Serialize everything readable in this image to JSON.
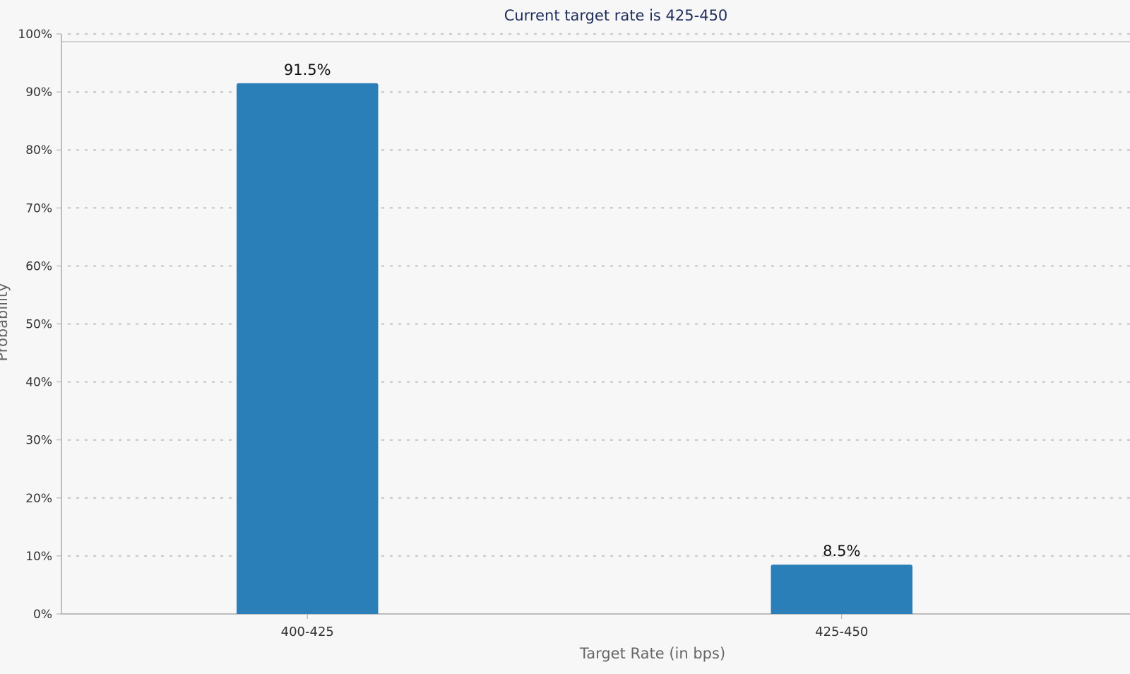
{
  "chart_data": {
    "type": "bar",
    "title": "Current target rate is 425-450",
    "xlabel": "Target Rate (in bps)",
    "ylabel": "Probability",
    "categories": [
      "400-425",
      "425-450"
    ],
    "values": [
      91.5,
      8.5
    ],
    "value_labels": [
      "91.5%",
      "8.5%"
    ],
    "ylim": [
      0,
      100
    ],
    "yticks": [
      0,
      10,
      20,
      30,
      40,
      50,
      60,
      70,
      80,
      90,
      100
    ],
    "ytick_labels": [
      "0%",
      "10%",
      "20%",
      "30%",
      "40%",
      "50%",
      "60%",
      "70%",
      "80%",
      "90%",
      "100%"
    ],
    "grid": true,
    "legend": "none",
    "colors": {
      "bar": "#2a7fb8",
      "title": "#1f2d5a",
      "grid": "#cccccc",
      "axis": "#aaaaaa",
      "background": "#f7f7f7"
    }
  }
}
